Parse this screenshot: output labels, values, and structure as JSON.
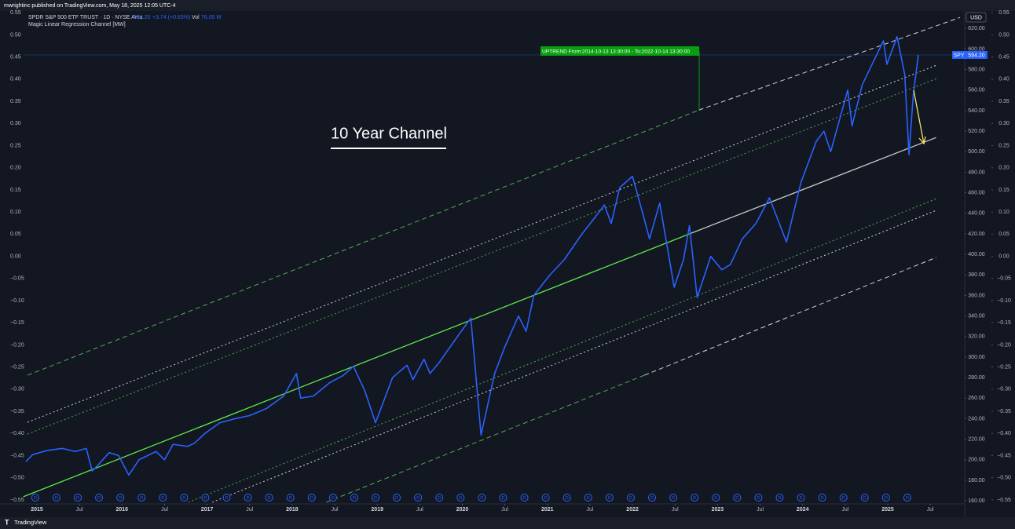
{
  "header": {
    "published": "mwrightinc published on TradingView.com, May 18, 2025 12:05 UTC-4",
    "symbol": "SPDR S&P 500 ETF TRUST · 1D · NYSE Arca",
    "change": "+3.74 (+0.63%)",
    "vol_label": "Vol",
    "vol": "76.05 M",
    "indicator": "Magic Linear Regression Channel [MW]",
    "currency": "USD"
  },
  "chart_data": {
    "type": "line",
    "annotation_title": "10 Year Channel",
    "uptrend_label": "UPTREND From:2014-10-13 13:30:00 - To:2022-10-14 13:30:00",
    "last_price": {
      "value": 594.2,
      "label": "594.20"
    },
    "x": [
      2014.87,
      2014.95,
      2015.12,
      2015.3,
      2015.45,
      2015.58,
      2015.65,
      2015.72,
      2015.85,
      2015.96,
      2016.08,
      2016.2,
      2016.4,
      2016.5,
      2016.6,
      2016.77,
      2016.85,
      2016.98,
      2017.15,
      2017.33,
      2017.5,
      2017.7,
      2017.9,
      2018.05,
      2018.1,
      2018.25,
      2018.44,
      2018.6,
      2018.72,
      2018.85,
      2018.98,
      2019.18,
      2019.35,
      2019.42,
      2019.55,
      2019.62,
      2019.73,
      2019.9,
      2020.1,
      2020.22,
      2020.38,
      2020.5,
      2020.66,
      2020.75,
      2020.84,
      2021.03,
      2021.2,
      2021.39,
      2021.55,
      2021.67,
      2021.75,
      2021.85,
      2022.0,
      2022.12,
      2022.2,
      2022.32,
      2022.49,
      2022.6,
      2022.67,
      2022.76,
      2022.92,
      2023.05,
      2023.15,
      2023.29,
      2023.45,
      2023.61,
      2023.81,
      2023.98,
      2024.16,
      2024.25,
      2024.33,
      2024.53,
      2024.58,
      2024.7,
      2024.81,
      2024.95,
      2024.99,
      2025.11,
      2025.2,
      2025.25,
      2025.3,
      2025.36
    ],
    "series": [
      {
        "name": "SPY",
        "color": "#2962ff",
        "values": [
          198,
          205,
          209,
          211,
          208,
          211,
          189,
          195,
          207,
          204,
          185,
          200,
          208,
          200,
          215,
          213,
          216,
          226,
          236,
          240,
          243,
          250,
          262,
          284,
          260,
          262,
          275,
          282,
          291,
          268,
          236,
          280,
          292,
          278,
          298,
          284,
          295,
          315,
          338,
          224,
          284,
          310,
          340,
          325,
          360,
          380,
          395,
          418,
          435,
          448,
          430,
          465,
          476,
          440,
          415,
          450,
          368,
          395,
          428,
          358,
          398,
          385,
          390,
          415,
          430,
          455,
          412,
          470,
          510,
          520,
          500,
          560,
          525,
          565,
          584,
          608,
          585,
          612,
          575,
          497,
          555,
          594.2
        ]
      }
    ],
    "channel": [
      {
        "color": "#4caf50",
        "style": "dashed",
        "x": [
          2014.89,
          2022.78
        ],
        "values": [
          282.3,
          540.5
        ]
      },
      {
        "color": "#d1d4dc",
        "style": "dashed",
        "x": [
          2022.78,
          2025.85
        ],
        "values": [
          540.5,
          630.7
        ]
      },
      {
        "color": "#d1d4dc",
        "style": "dotted",
        "x": [
          2014.89,
          2025.57
        ],
        "values": [
          236.5,
          584.1
        ]
      },
      {
        "color": "#4caf50",
        "style": "dotted",
        "x": [
          2014.89,
          2025.57
        ],
        "values": [
          225,
          571.1
        ]
      },
      {
        "color": "#5ee84a",
        "style": "solid",
        "x": [
          2014.84,
          2022.69
        ],
        "values": [
          164,
          420.6
        ]
      },
      {
        "color": "#c8c8c8",
        "style": "solid",
        "x": [
          2022.69,
          2025.57
        ],
        "values": [
          420.6,
          513.8
        ]
      },
      {
        "color": "#4caf50",
        "style": "dotted",
        "x": [
          2016.78,
          2025.57
        ],
        "values": [
          158.6,
          454.2
        ]
      },
      {
        "color": "#d1d4dc",
        "style": "dotted",
        "x": [
          2017.06,
          2025.57
        ],
        "values": [
          158.6,
          442.8
        ]
      },
      {
        "color": "#4caf50",
        "style": "dashed",
        "x": [
          2018.4,
          2022.14
        ],
        "values": [
          158.6,
          282.3
        ]
      },
      {
        "color": "#d1d4dc",
        "style": "dashed",
        "x": [
          2022.14,
          2025.57
        ],
        "values": [
          282.3,
          397
        ]
      }
    ],
    "dividend_label": "D",
    "dividend_x": [
      2014.98,
      2015.23,
      2015.48,
      2015.73,
      2015.98,
      2016.23,
      2016.48,
      2016.73,
      2016.98,
      2017.23,
      2017.48,
      2017.73,
      2017.98,
      2018.23,
      2018.48,
      2018.73,
      2018.98,
      2019.23,
      2019.48,
      2019.73,
      2019.98,
      2020.23,
      2020.48,
      2020.73,
      2020.98,
      2021.23,
      2021.48,
      2021.73,
      2021.98,
      2022.23,
      2022.48,
      2022.73,
      2022.98,
      2023.23,
      2023.48,
      2023.73,
      2023.98,
      2024.23,
      2024.48,
      2024.73,
      2024.98,
      2025.23
    ],
    "xlim": [
      2014.843,
      2025.905
    ],
    "xticks": [
      2015,
      {
        "value": 2015.5,
        "label": "Jul"
      },
      2016,
      {
        "value": 2016.5,
        "label": "Jul"
      },
      2017,
      {
        "value": 2017.5,
        "label": "Jul"
      },
      2018,
      {
        "value": 2018.5,
        "label": "Jul"
      },
      2019,
      {
        "value": 2019.5,
        "label": "Jul"
      },
      2020,
      {
        "value": 2020.5,
        "label": "Jul"
      },
      2021,
      {
        "value": 2021.5,
        "label": "Jul"
      },
      2022,
      {
        "value": 2022.5,
        "label": "Jul"
      },
      2023,
      {
        "value": 2023.5,
        "label": "Jul"
      },
      2024,
      {
        "value": 2024.5,
        "label": "Jul"
      },
      2025,
      {
        "value": 2025.5,
        "label": "Jul"
      }
    ],
    "ylim": [
      157,
      637
    ],
    "yticks": [
      {
        "value": 160,
        "label": "160.00"
      },
      {
        "value": 180,
        "label": "180.00"
      },
      {
        "value": 200,
        "label": "200.00"
      },
      {
        "value": 220,
        "label": "220.00"
      },
      {
        "value": 240,
        "label": "240.00"
      },
      {
        "value": 260,
        "label": "260.00"
      },
      {
        "value": 280,
        "label": "280.00"
      },
      {
        "value": 300,
        "label": "300.00"
      },
      {
        "value": 320,
        "label": "320.00"
      },
      {
        "value": 340,
        "label": "340.00"
      },
      {
        "value": 360,
        "label": "360.00"
      },
      {
        "value": 380,
        "label": "380.00"
      },
      {
        "value": 400,
        "label": "400.00"
      },
      {
        "value": 420,
        "label": "420.00"
      },
      {
        "value": 440,
        "label": "440.00"
      },
      {
        "value": 460,
        "label": "460.00"
      },
      {
        "value": 480,
        "label": "480.00"
      },
      {
        "value": 500,
        "label": "500.00"
      },
      {
        "value": 520,
        "label": "520.00"
      },
      {
        "value": 540,
        "label": "540.00"
      },
      {
        "value": 560,
        "label": "560.00"
      },
      {
        "value": 580,
        "label": "580.00"
      },
      {
        "value": 600,
        "label": "600.00"
      },
      {
        "value": 620,
        "label": "620.00"
      }
    ],
    "y2lim": [
      -0.559,
      0.554
    ],
    "y2ticks": [
      {
        "value": 0.55,
        "label": "0.55"
      },
      {
        "value": 0.5,
        "label": "0.50"
      },
      {
        "value": 0.45,
        "label": "0.45"
      },
      {
        "value": 0.4,
        "label": "0.40"
      },
      {
        "value": 0.35,
        "label": "0.35"
      },
      {
        "value": 0.3,
        "label": "0.30"
      },
      {
        "value": 0.25,
        "label": "0.25"
      },
      {
        "value": 0.2,
        "label": "0.20"
      },
      {
        "value": 0.15,
        "label": "0.15"
      },
      {
        "value": 0.1,
        "label": "0.10"
      },
      {
        "value": 0.05,
        "label": "0.05"
      },
      {
        "value": 0,
        "label": "0.00"
      },
      {
        "value": -0.05,
        "label": "−0.05"
      },
      {
        "value": -0.1,
        "label": "−0.10"
      },
      {
        "value": -0.15,
        "label": "−0.15"
      },
      {
        "value": -0.2,
        "label": "−0.20"
      },
      {
        "value": -0.25,
        "label": "−0.25"
      },
      {
        "value": -0.3,
        "label": "−0.30"
      },
      {
        "value": -0.35,
        "label": "−0.35"
      },
      {
        "value": -0.4,
        "label": "−0.40"
      },
      {
        "value": -0.45,
        "label": "−0.45"
      },
      {
        "value": -0.5,
        "label": "−0.50"
      },
      {
        "value": -0.55,
        "label": "−0.55"
      }
    ],
    "grid": false
  },
  "footer": {
    "brand": "TradingView"
  }
}
